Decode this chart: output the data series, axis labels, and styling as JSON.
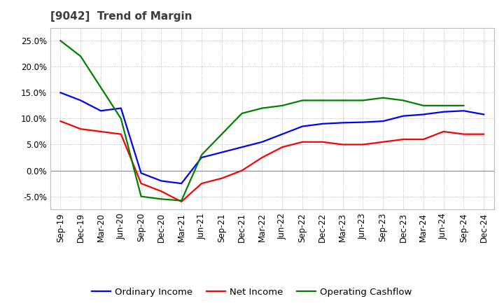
{
  "title": "[9042]  Trend of Margin",
  "x_labels": [
    "Sep-19",
    "Dec-19",
    "Mar-20",
    "Jun-20",
    "Sep-20",
    "Dec-20",
    "Mar-21",
    "Jun-21",
    "Sep-21",
    "Dec-21",
    "Mar-22",
    "Jun-22",
    "Sep-22",
    "Dec-22",
    "Mar-23",
    "Jun-23",
    "Sep-23",
    "Dec-23",
    "Mar-24",
    "Jun-24",
    "Sep-24",
    "Dec-24"
  ],
  "ordinary_income": [
    15.0,
    13.5,
    11.5,
    12.0,
    -0.5,
    -2.0,
    -2.5,
    2.5,
    3.5,
    4.5,
    5.5,
    7.0,
    8.5,
    9.0,
    9.2,
    9.3,
    9.5,
    10.5,
    10.8,
    11.3,
    11.5,
    10.8
  ],
  "net_income": [
    9.5,
    8.0,
    7.5,
    7.0,
    -2.5,
    -4.0,
    -6.0,
    -2.5,
    -1.5,
    0.0,
    2.5,
    4.5,
    5.5,
    5.5,
    5.0,
    5.0,
    5.5,
    6.0,
    6.0,
    7.5,
    7.0,
    7.0
  ],
  "operating_cashflow": [
    25.0,
    22.0,
    16.0,
    10.0,
    -5.0,
    -5.5,
    -5.8,
    3.0,
    7.0,
    11.0,
    12.0,
    12.5,
    13.5,
    13.5,
    13.5,
    13.5,
    14.0,
    13.5,
    12.5,
    12.5,
    12.5,
    null
  ],
  "ylim": [
    -7.5,
    27.5
  ],
  "yticks": [
    -5.0,
    0.0,
    5.0,
    10.0,
    15.0,
    20.0,
    25.0
  ],
  "line_colors": {
    "ordinary_income": "#0000FF",
    "net_income": "#FF0000",
    "operating_cashflow": "#008000"
  },
  "legend_labels": [
    "Ordinary Income",
    "Net Income",
    "Operating Cashflow"
  ],
  "background_color": "#FFFFFF",
  "plot_bg_color": "#FFFFFF",
  "grid_color": "#AAAAAA",
  "title_color": "#3C3C3C",
  "title_fontsize": 11,
  "axis_fontsize": 8.5,
  "legend_fontsize": 9.5
}
